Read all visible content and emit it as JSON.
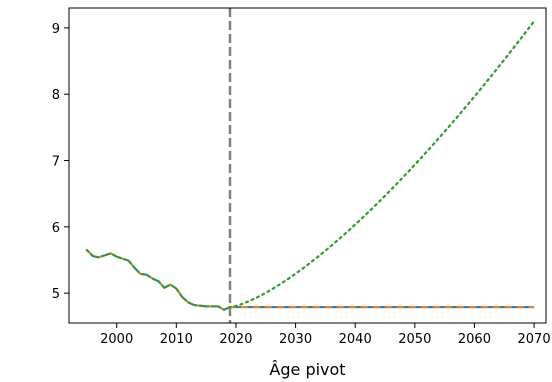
{
  "chart_data": {
    "type": "line",
    "xlabel": "Âge pivot",
    "ylabel": "",
    "xlim": [
      1992,
      2072
    ],
    "ylim": [
      4.55,
      9.3
    ],
    "x_ticks": [
      2000,
      2010,
      2020,
      2030,
      2040,
      2050,
      2060,
      2070
    ],
    "y_ticks": [
      5,
      6,
      7,
      8,
      9
    ],
    "vline": {
      "x": 2019,
      "color": "#808080",
      "style": "dashed"
    },
    "history": {
      "x": [
        1995,
        1996,
        1997,
        1998,
        1999,
        2000,
        2001,
        2002,
        2003,
        2004,
        2005,
        2006,
        2007,
        2008,
        2009,
        2010,
        2011,
        2012,
        2013,
        2014,
        2015,
        2016,
        2017,
        2018,
        2019
      ],
      "y": [
        5.65,
        5.56,
        5.54,
        5.57,
        5.6,
        5.55,
        5.52,
        5.49,
        5.38,
        5.29,
        5.28,
        5.22,
        5.18,
        5.08,
        5.13,
        5.07,
        4.94,
        4.86,
        4.82,
        4.81,
        4.8,
        4.8,
        4.8,
        4.75,
        4.79
      ]
    },
    "series": [
      {
        "color": "#1f77b4",
        "style": "solid",
        "projection_start": 4.79,
        "projection_end": 4.79
      },
      {
        "color": "#ff7f0e",
        "style": "dashed",
        "projection_start": 4.79,
        "projection_end": 4.79
      },
      {
        "color": "#2ca02c",
        "style": "dotted",
        "projection_start": 4.79,
        "projection_end": 9.1,
        "curve_exponent": 1.4
      }
    ],
    "projection_x_end": 2070,
    "grid": false
  }
}
